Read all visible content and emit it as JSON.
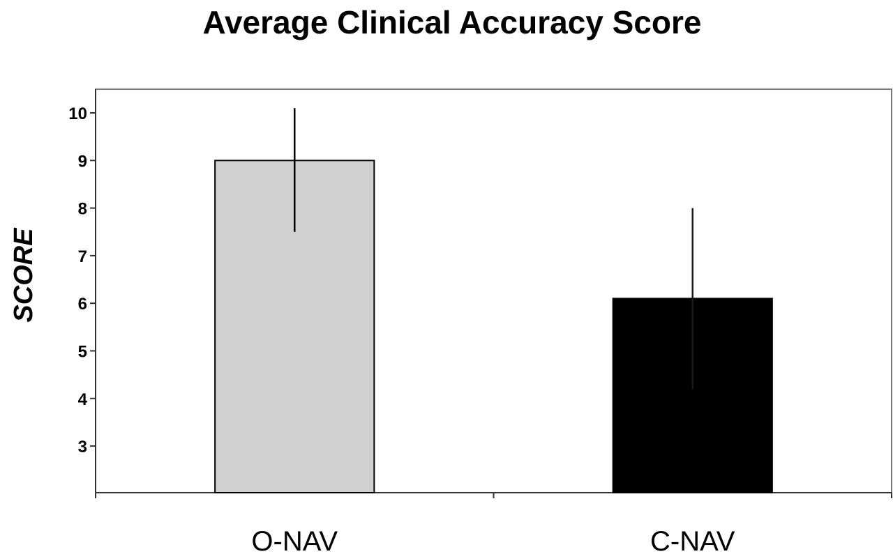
{
  "chart_data": {
    "type": "bar",
    "title": "Average Clinical Accuracy Score",
    "xlabel": "",
    "ylabel": "SCORE",
    "categories": [
      "O-NAV",
      "C-NAV"
    ],
    "values": [
      9.0,
      6.1
    ],
    "error_bars": {
      "upper": [
        10.1,
        8.0
      ],
      "lower": [
        7.5,
        4.2
      ]
    },
    "bar_colors": [
      "#d0d0d0",
      "#000000"
    ],
    "ylim": [
      2,
      10.4
    ],
    "yticks": [
      3,
      4,
      5,
      6,
      7,
      8,
      9,
      10
    ],
    "grid": false,
    "legend": "none"
  }
}
